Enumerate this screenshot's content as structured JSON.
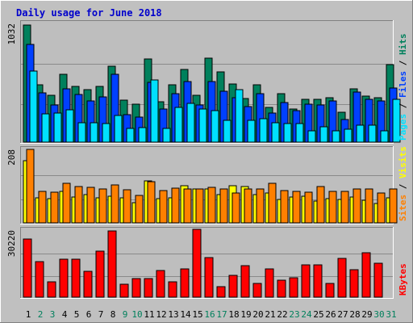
{
  "title": "Daily usage for June 2018",
  "colors": {
    "background": "#c0c0c0",
    "panel": "#bebebe",
    "hits": "#00805c",
    "files": "#0040ff",
    "pages": "#00e0ff",
    "visits": "#ffff00",
    "sites": "#ff8000",
    "kbytes": "#ff0000",
    "weekday_label": "#000000",
    "weekend_label": "#00805c"
  },
  "chart_data": [
    {
      "type": "bar",
      "panel": "hits-files-pages",
      "ymax_label": "1032",
      "ylim": [
        0,
        1032
      ],
      "legend": [
        {
          "name": "Pages",
          "color": "#00e0ff"
        },
        {
          "name": "Files",
          "color": "#0040ff"
        },
        {
          "name": "Hits",
          "color": "#00805c"
        }
      ],
      "categories": [
        "1",
        "2",
        "3",
        "4",
        "5",
        "6",
        "7",
        "8",
        "9",
        "10",
        "11",
        "12",
        "13",
        "14",
        "15",
        "16",
        "17",
        "18",
        "19",
        "20",
        "21",
        "22",
        "23",
        "24",
        "25",
        "26",
        "27",
        "28",
        "29",
        "30",
        "31"
      ],
      "series": [
        {
          "name": "Hits",
          "values": [
            1020,
            495,
            405,
            590,
            485,
            455,
            485,
            660,
            365,
            330,
            725,
            350,
            495,
            630,
            405,
            730,
            610,
            505,
            380,
            500,
            300,
            420,
            290,
            375,
            375,
            385,
            260,
            465,
            400,
            385,
            675
          ]
        },
        {
          "name": "Files",
          "values": [
            850,
            425,
            320,
            460,
            415,
            360,
            395,
            590,
            240,
            215,
            520,
            285,
            420,
            530,
            320,
            530,
            445,
            385,
            310,
            420,
            250,
            345,
            275,
            330,
            325,
            355,
            200,
            435,
            370,
            355,
            470
          ]
        },
        {
          "name": "Pages",
          "values": [
            615,
            245,
            255,
            280,
            165,
            165,
            160,
            235,
            120,
            125,
            540,
            120,
            305,
            335,
            290,
            275,
            190,
            455,
            190,
            205,
            170,
            160,
            160,
            100,
            130,
            100,
            115,
            150,
            145,
            100,
            375
          ]
        }
      ]
    },
    {
      "type": "bar",
      "panel": "visits-sites",
      "ymax_label": "208",
      "ylim": [
        0,
        208
      ],
      "legend": [
        {
          "name": "Sites",
          "color": "#ff8000"
        },
        {
          "name": "Visits",
          "color": "#ffff00"
        }
      ],
      "categories": [
        "1",
        "2",
        "3",
        "4",
        "5",
        "6",
        "7",
        "8",
        "9",
        "10",
        "11",
        "12",
        "13",
        "14",
        "15",
        "16",
        "17",
        "18",
        "19",
        "20",
        "21",
        "22",
        "23",
        "24",
        "25",
        "26",
        "27",
        "28",
        "29",
        "30",
        "31"
      ],
      "series": [
        {
          "name": "Visits",
          "values": [
            175,
            70,
            68,
            90,
            74,
            81,
            70,
            76,
            70,
            57,
            120,
            68,
            70,
            105,
            95,
            95,
            80,
            105,
            102,
            81,
            85,
            67,
            73,
            76,
            62,
            68,
            67,
            73,
            64,
            55,
            70
          ]
        },
        {
          "name": "Sites",
          "values": [
            208,
            90,
            87,
            112,
            102,
            100,
            95,
            108,
            93,
            78,
            117,
            92,
            98,
            95,
            97,
            100,
            97,
            85,
            95,
            95,
            113,
            92,
            90,
            87,
            103,
            90,
            90,
            95,
            95,
            85,
            95
          ]
        }
      ]
    },
    {
      "type": "bar",
      "panel": "kbytes",
      "ymax_label": "30220",
      "ylim": [
        0,
        30220
      ],
      "legend": [
        {
          "name": "KBytes",
          "color": "#ff0000"
        }
      ],
      "categories": [
        "1",
        "2",
        "3",
        "4",
        "5",
        "6",
        "7",
        "8",
        "9",
        "10",
        "11",
        "12",
        "13",
        "14",
        "15",
        "16",
        "17",
        "18",
        "19",
        "20",
        "21",
        "22",
        "23",
        "24",
        "25",
        "26",
        "27",
        "28",
        "29",
        "30",
        "31"
      ],
      "series": [
        {
          "name": "KBytes",
          "values": [
            26200,
            16000,
            6900,
            17200,
            17200,
            11700,
            20900,
            30000,
            5700,
            8200,
            8200,
            11900,
            6900,
            12700,
            30500,
            17700,
            4800,
            9900,
            14300,
            6100,
            12800,
            7600,
            8600,
            14700,
            14600,
            6100,
            17500,
            12500,
            19900,
            15200,
            0
          ]
        }
      ]
    }
  ],
  "x_labels": {
    "days": [
      "1",
      "2",
      "3",
      "4",
      "5",
      "6",
      "7",
      "8",
      "9",
      "10",
      "11",
      "12",
      "13",
      "14",
      "15",
      "16",
      "17",
      "18",
      "19",
      "20",
      "21",
      "22",
      "23",
      "24",
      "25",
      "26",
      "27",
      "28",
      "29",
      "30",
      "31"
    ],
    "weekend_days": [
      "2",
      "3",
      "9",
      "10",
      "16",
      "17",
      "23",
      "24",
      "30",
      "31"
    ]
  }
}
